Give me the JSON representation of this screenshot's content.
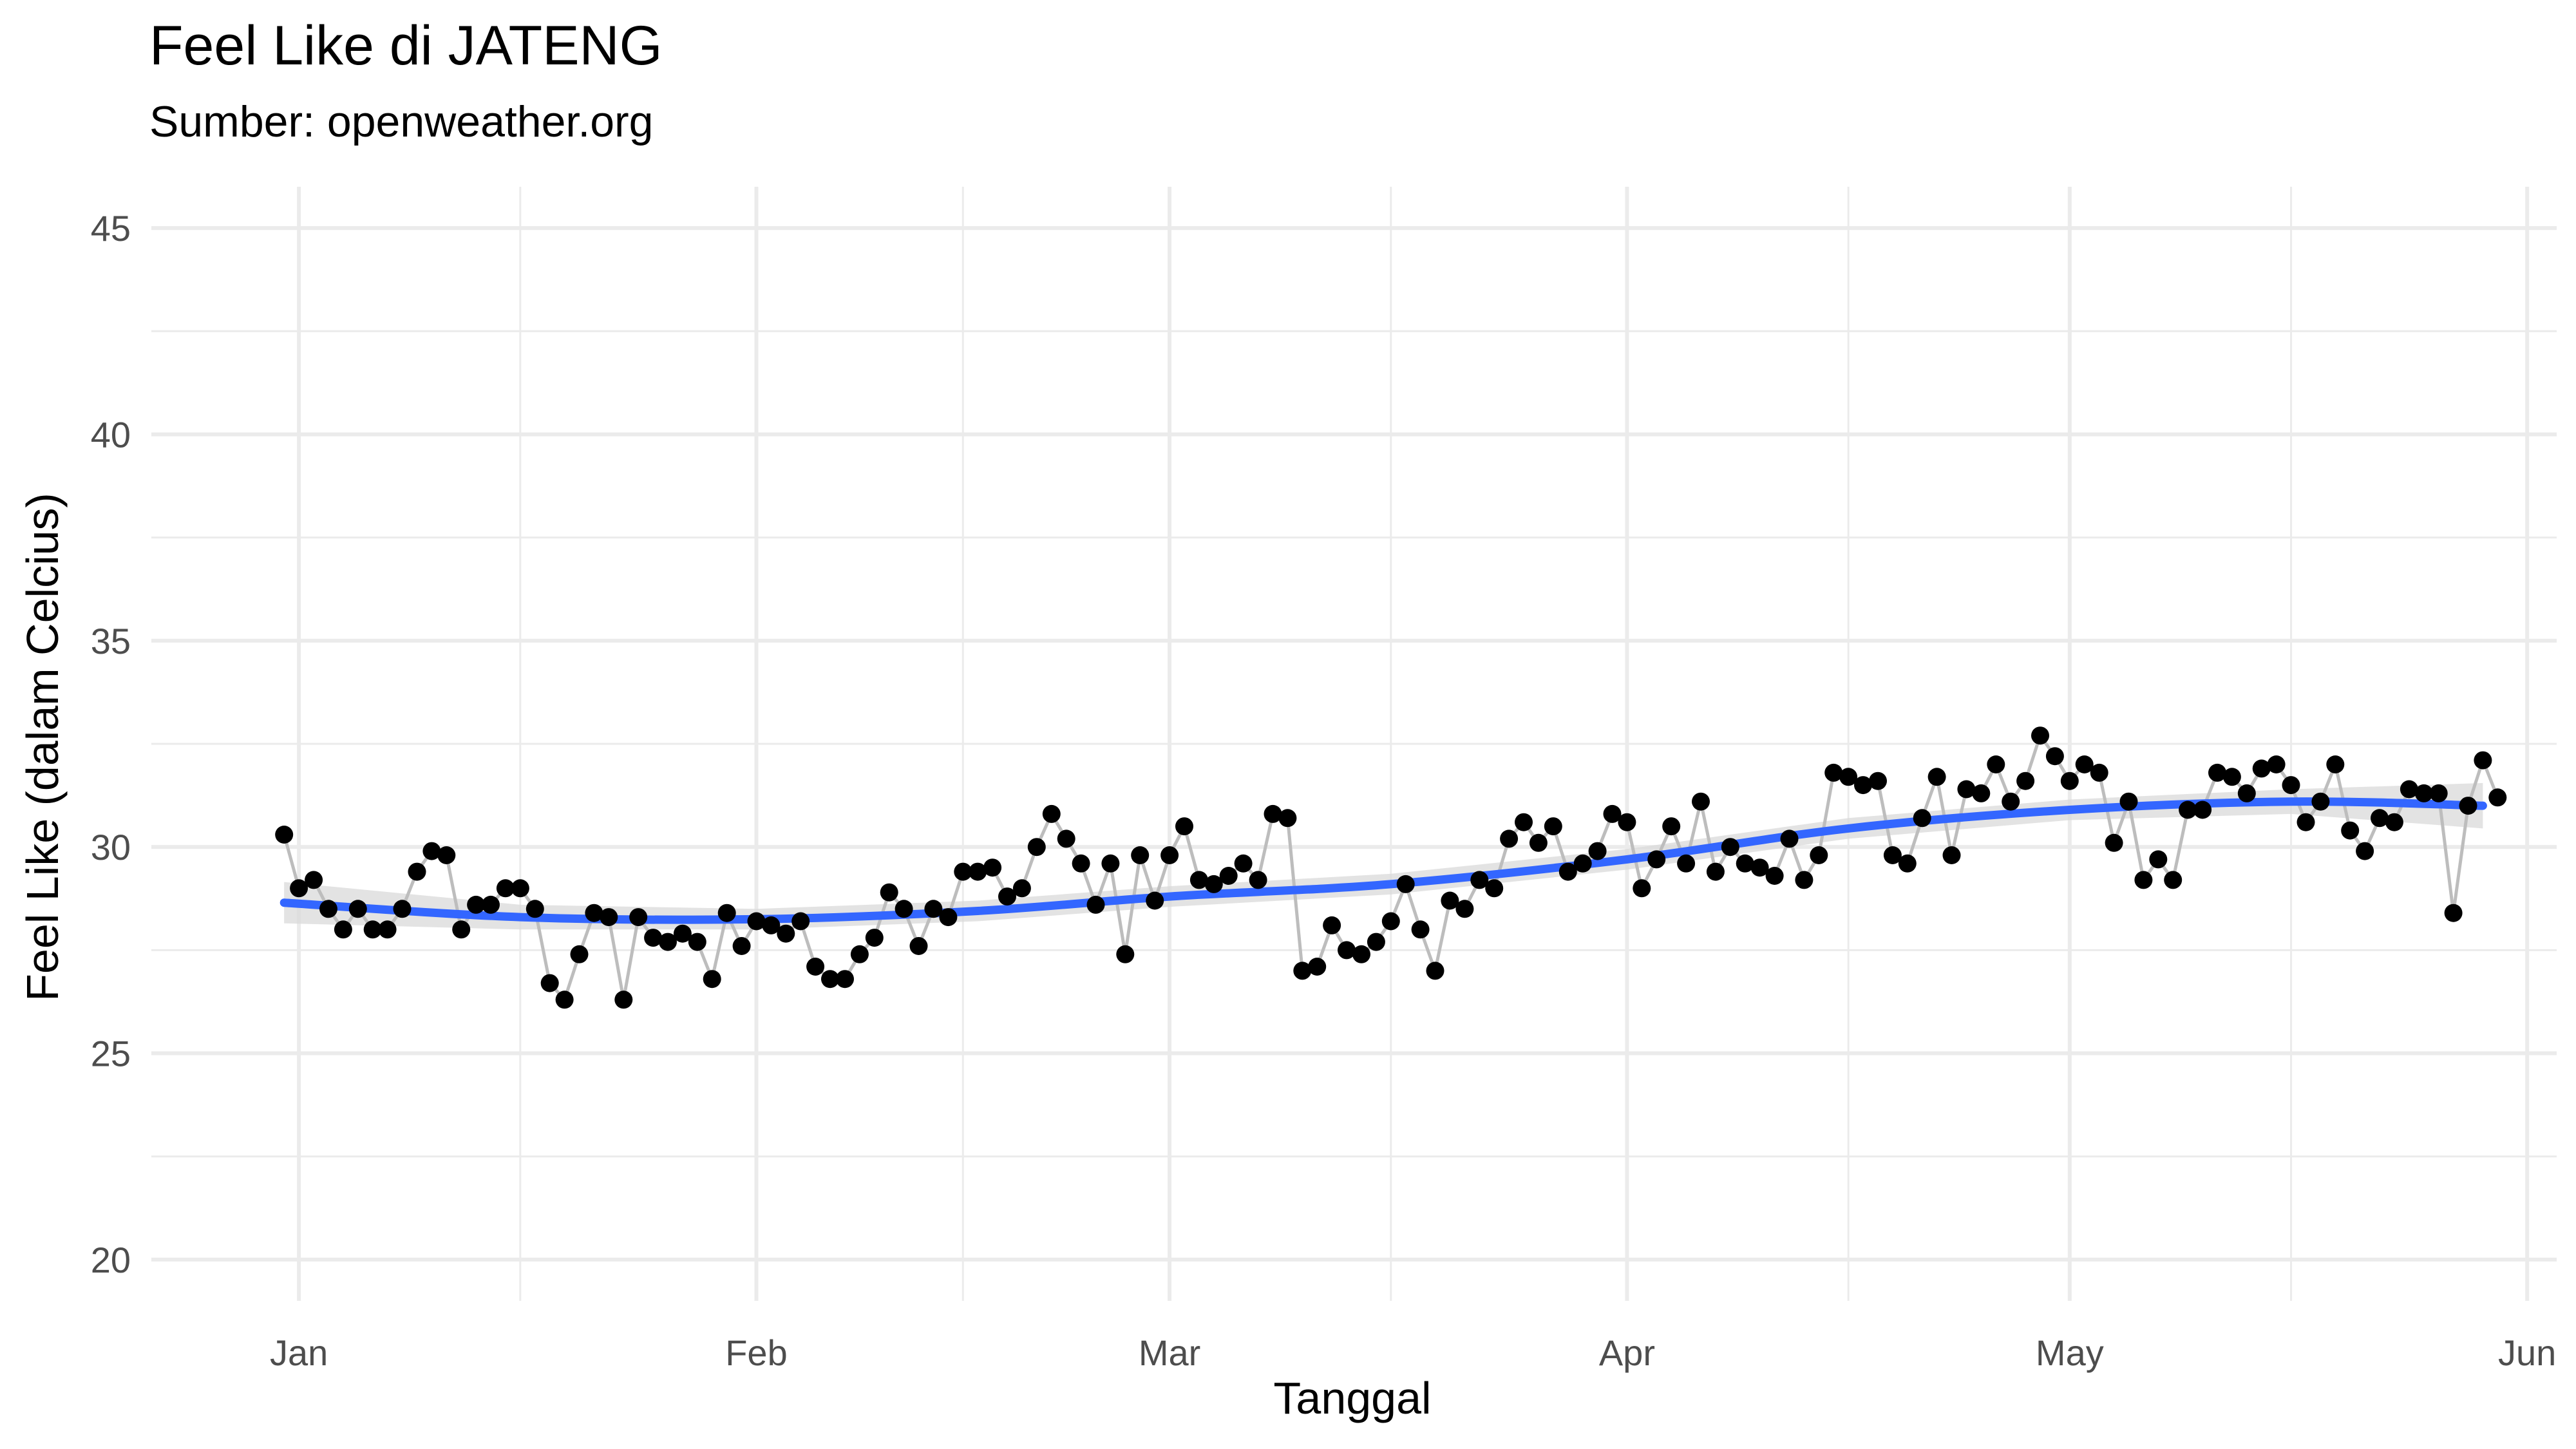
{
  "chart_data": {
    "type": "line",
    "title": "Feel Like di JATENG",
    "subtitle": "Sumber: openweather.org",
    "xlabel": "Tanggal",
    "ylabel": "Feel Like (dalam Celcius)",
    "x_range": [
      "2021-12-22",
      "2022-06-03"
    ],
    "ylim": [
      19,
      46
    ],
    "x_ticks": [
      {
        "date": "2022-01-01",
        "label": "Jan"
      },
      {
        "date": "2022-02-01",
        "label": "Feb"
      },
      {
        "date": "2022-03-01",
        "label": "Mar"
      },
      {
        "date": "2022-04-01",
        "label": "Apr"
      },
      {
        "date": "2022-05-01",
        "label": "May"
      },
      {
        "date": "2022-06-01",
        "label": "Jun"
      }
    ],
    "x_minor_ticks": [
      "2022-01-16",
      "2022-02-15",
      "2022-03-16",
      "2022-04-16",
      "2022-05-16"
    ],
    "y_ticks": [
      20,
      25,
      30,
      35,
      40,
      45
    ],
    "y_minor_ticks": [
      22.5,
      27.5,
      32.5,
      37.5,
      42.5
    ],
    "grid": true,
    "colors": {
      "points": "#000000",
      "line": "#bdbdbd",
      "smooth": "#3366ff",
      "ribbon": "#d9d9d9"
    },
    "series": [
      {
        "kind": "observed",
        "start_date": "2021-12-31",
        "values": [
          30.3,
          29.0,
          29.2,
          28.5,
          28.0,
          28.5,
          28.0,
          28.0,
          28.5,
          29.4,
          29.9,
          29.8,
          28.0,
          28.6,
          28.6,
          29.0,
          29.0,
          28.5,
          26.7,
          26.3,
          27.4,
          28.4,
          28.3,
          26.3,
          28.3,
          27.8,
          27.7,
          27.9,
          27.7,
          26.8,
          28.4,
          27.6,
          28.2,
          28.1,
          27.9,
          28.2,
          27.1,
          26.8,
          26.8,
          27.4,
          27.8,
          28.9,
          28.5,
          27.6,
          28.5,
          28.3,
          29.4,
          29.4,
          29.5,
          28.8,
          29.0,
          30.0,
          30.8,
          30.2,
          29.6,
          28.6,
          29.6,
          27.4,
          29.8,
          28.7,
          29.8,
          30.5,
          29.2,
          29.1,
          29.3,
          29.6,
          29.2,
          30.8,
          30.7,
          27.0,
          27.1,
          28.1,
          27.5,
          27.4,
          27.7,
          28.2,
          29.1,
          28.0,
          27.0,
          28.7,
          28.5,
          29.2,
          29.0,
          30.2,
          30.6,
          30.1,
          30.5,
          29.4,
          29.6,
          29.9,
          30.8,
          30.6,
          29.0,
          29.7,
          30.5,
          29.6,
          31.1,
          29.4,
          30.0,
          29.6,
          29.5,
          29.3,
          30.2,
          29.2,
          29.8,
          31.8,
          31.7,
          31.5,
          31.6,
          29.8,
          29.6,
          30.7,
          31.7,
          29.8,
          31.4,
          31.3,
          32.0,
          31.1,
          31.6,
          32.7,
          32.2,
          31.6,
          32.0,
          31.8,
          30.1,
          31.1,
          29.2,
          29.7,
          29.2,
          30.9,
          30.9,
          31.8,
          31.7,
          31.3,
          31.9,
          32.0,
          31.5,
          30.6,
          31.1,
          32.0,
          30.4,
          29.9,
          30.7,
          30.6,
          31.4,
          31.3,
          31.3,
          28.4,
          31.0,
          32.1,
          31.2
        ]
      },
      {
        "kind": "smooth",
        "x": [
          "2021-12-31",
          "2022-01-16",
          "2022-02-01",
          "2022-02-16",
          "2022-03-01",
          "2022-03-16",
          "2022-04-01",
          "2022-04-16",
          "2022-05-01",
          "2022-05-16",
          "2022-05-29"
        ],
        "values": [
          28.65,
          28.3,
          28.25,
          28.45,
          28.8,
          29.1,
          29.7,
          30.45,
          30.9,
          31.1,
          31.0
        ],
        "lower": [
          28.15,
          28.0,
          28.0,
          28.2,
          28.55,
          28.85,
          29.45,
          30.2,
          30.65,
          30.8,
          30.45
        ],
        "upper": [
          29.15,
          28.6,
          28.5,
          28.7,
          29.05,
          29.35,
          29.95,
          30.7,
          31.15,
          31.4,
          31.55
        ]
      }
    ]
  }
}
